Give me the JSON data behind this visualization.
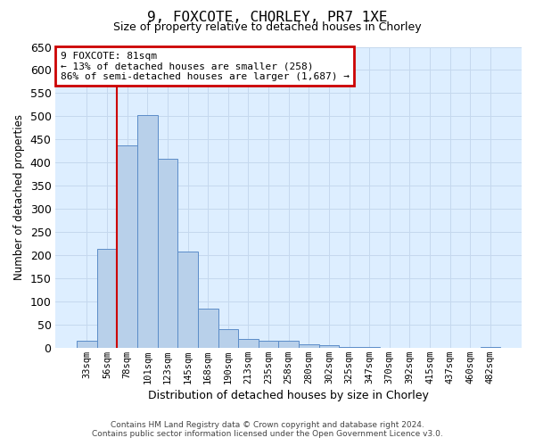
{
  "title": "9, FOXCOTE, CHORLEY, PR7 1XE",
  "subtitle": "Size of property relative to detached houses in Chorley",
  "xlabel": "Distribution of detached houses by size in Chorley",
  "ylabel": "Number of detached properties",
  "bar_labels": [
    "33sqm",
    "56sqm",
    "78sqm",
    "101sqm",
    "123sqm",
    "145sqm",
    "168sqm",
    "190sqm",
    "213sqm",
    "235sqm",
    "258sqm",
    "280sqm",
    "302sqm",
    "325sqm",
    "347sqm",
    "370sqm",
    "392sqm",
    "415sqm",
    "437sqm",
    "460sqm",
    "482sqm"
  ],
  "bar_values": [
    15,
    213,
    438,
    503,
    408,
    208,
    85,
    40,
    18,
    15,
    15,
    8,
    5,
    1,
    1,
    0,
    0,
    0,
    0,
    0,
    1
  ],
  "bar_color": "#b8d0ea",
  "bar_edge_color": "#5b8cc8",
  "vline_x": 1.5,
  "vline_color": "#cc0000",
  "annotation_text": "9 FOXCOTE: 81sqm\n← 13% of detached houses are smaller (258)\n86% of semi-detached houses are larger (1,687) →",
  "annotation_box_facecolor": "#ffffff",
  "annotation_box_edgecolor": "#cc0000",
  "ylim": [
    0,
    650
  ],
  "yticks": [
    0,
    50,
    100,
    150,
    200,
    250,
    300,
    350,
    400,
    450,
    500,
    550,
    600,
    650
  ],
  "grid_color": "#c5d8ee",
  "plot_bg_color": "#ddeeff",
  "footer_line1": "Contains HM Land Registry data © Crown copyright and database right 2024.",
  "footer_line2": "Contains public sector information licensed under the Open Government Licence v3.0."
}
